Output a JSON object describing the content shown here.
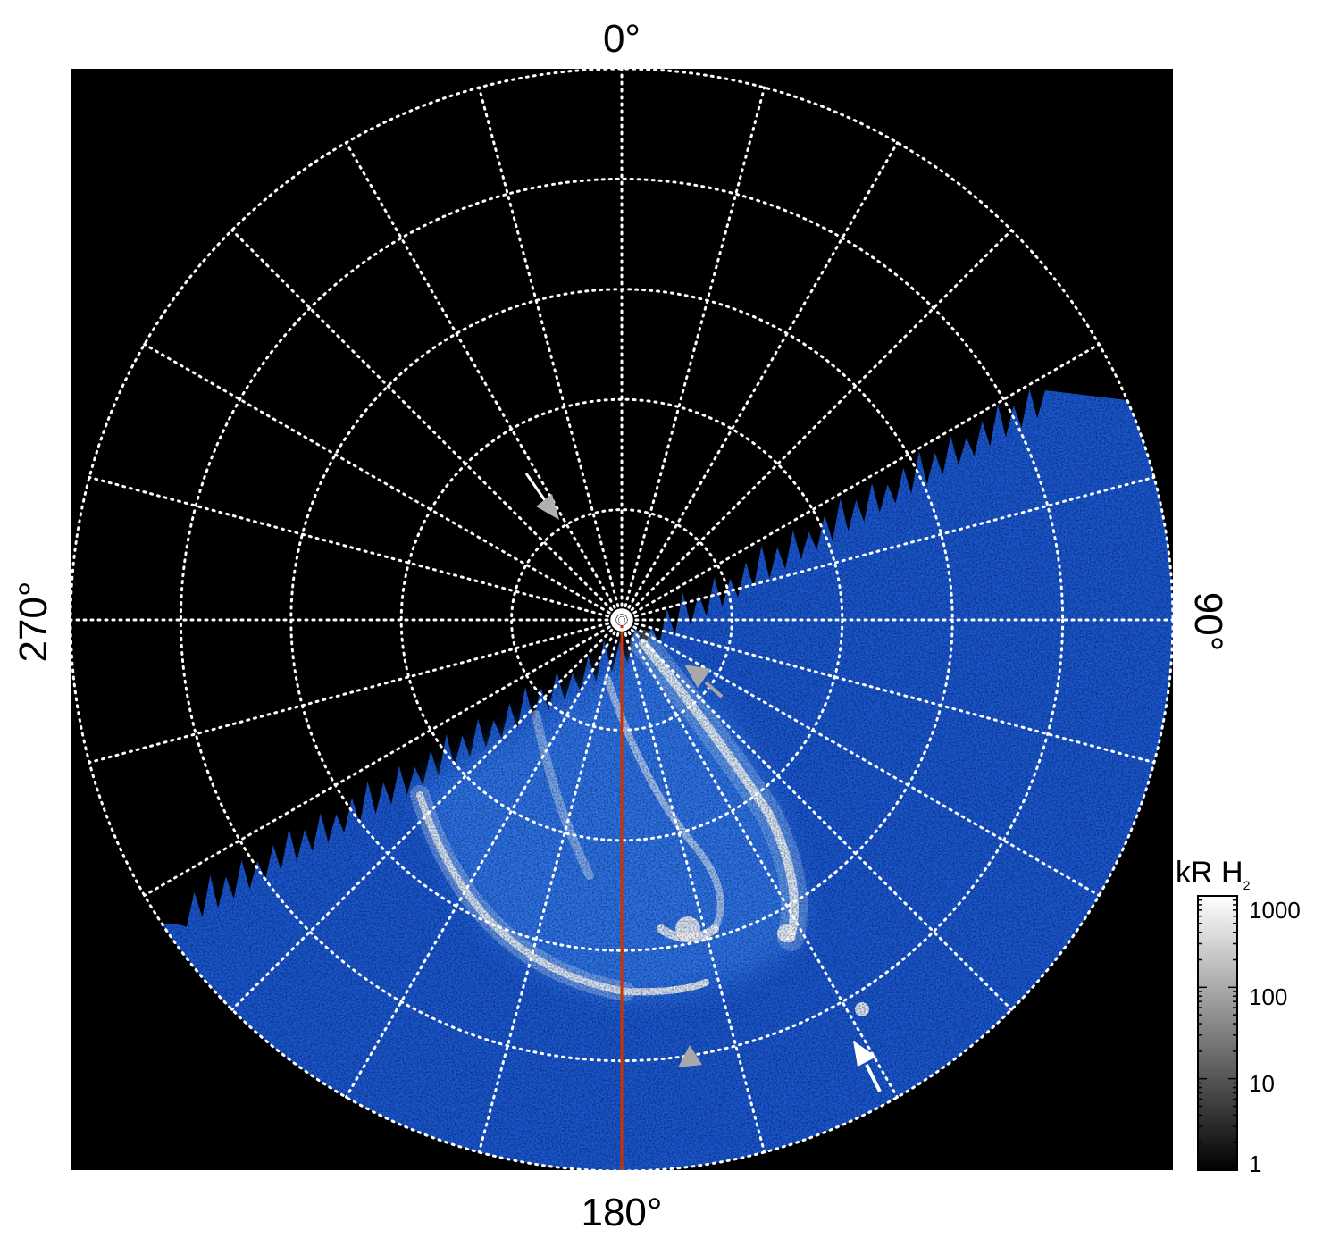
{
  "figure": {
    "azimuth_labels": {
      "top": "0°",
      "right": "90°",
      "bottom": "180°",
      "left": "270°"
    },
    "colorbar": {
      "title": "kR H",
      "title_subscript": "2",
      "ticks": [
        "1000",
        "100",
        "10",
        "1"
      ],
      "scale": "log",
      "colors": [
        "#000000",
        "#ffffff"
      ]
    },
    "colors": {
      "background": "#000000",
      "aurora_base": "#1a64e6",
      "aurora_bright": "#ffffff",
      "grid": "#ffffff",
      "meridian_line": "#cc3300",
      "arrow_grey": "#a8a8a8",
      "arrow_white": "#ffffff"
    },
    "grid": {
      "style": "dotted",
      "rings": 5,
      "meridians": 24
    },
    "markers": [
      "arrow",
      "arrow",
      "arrow",
      "arrow"
    ]
  }
}
